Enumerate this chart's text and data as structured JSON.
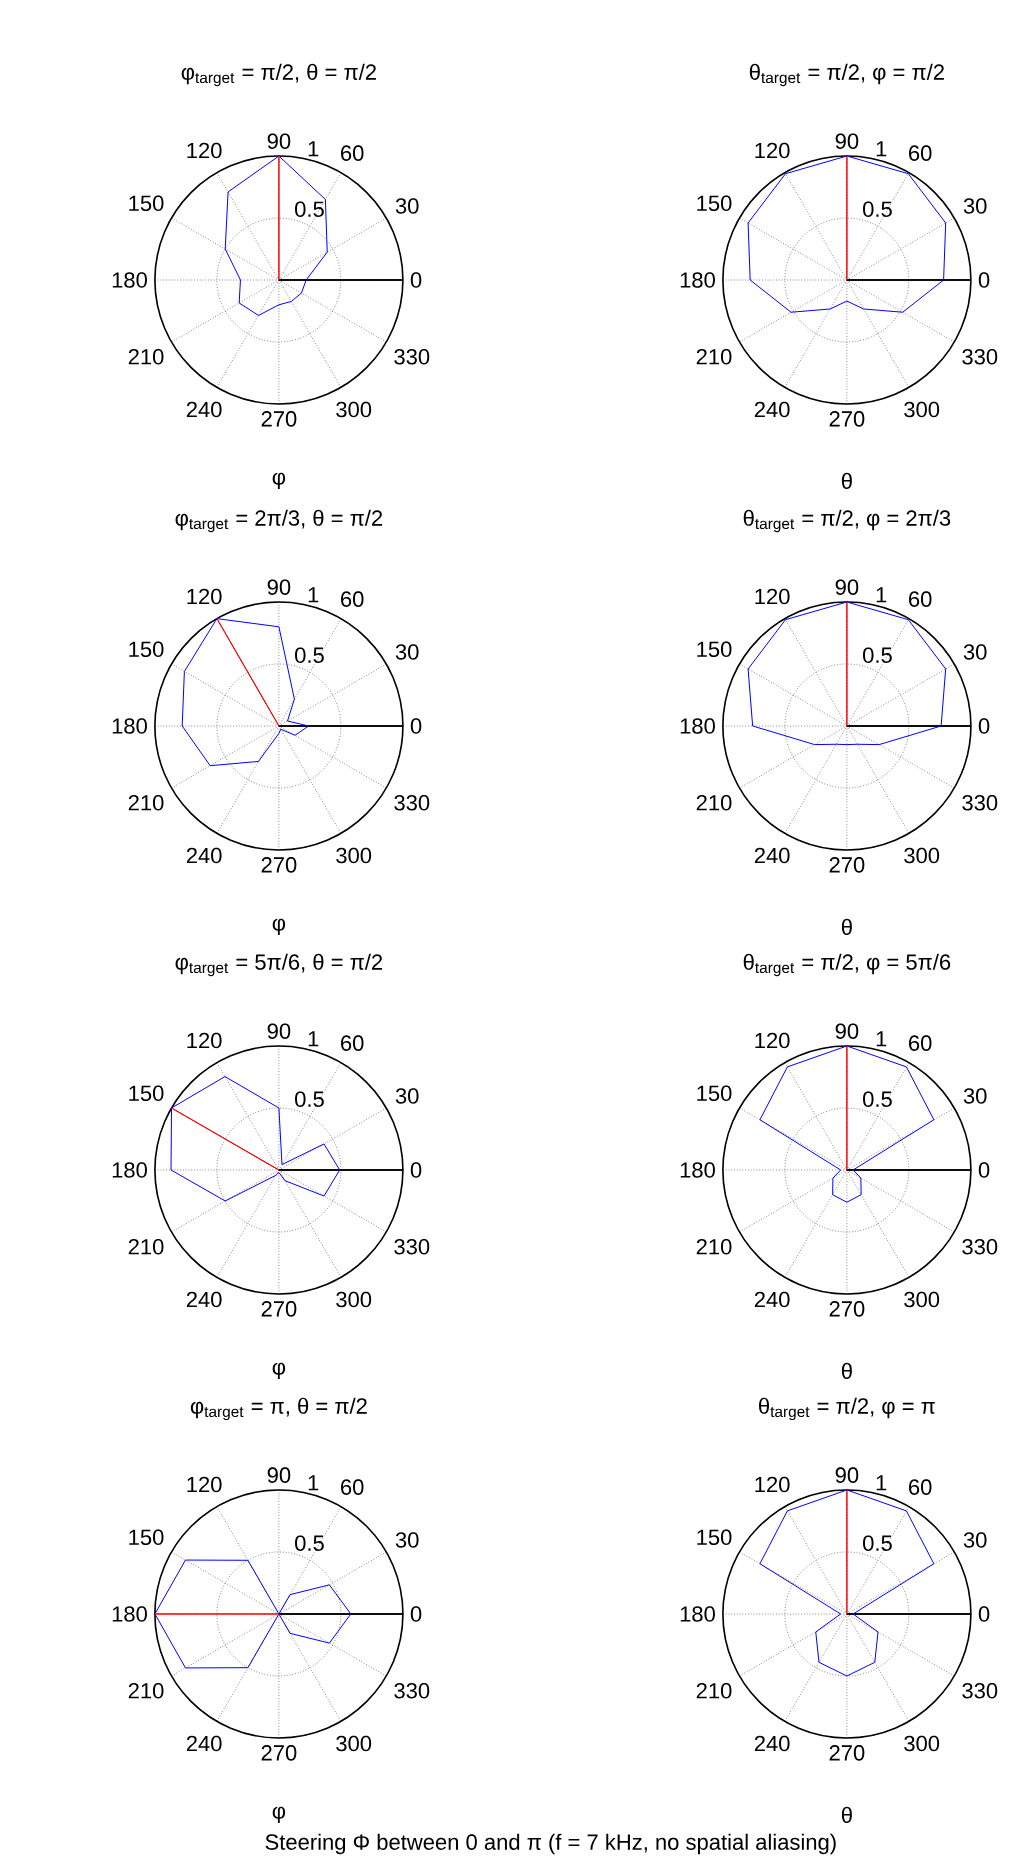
{
  "chart_data": [
    {
      "type": "radar",
      "title": "φ$_{target}$ = π/2, θ = π/2",
      "xlabel": "φ",
      "categories": [
        "90",
        "60",
        "30",
        "0",
        "330",
        "300",
        "270",
        "240",
        "210",
        "180",
        "150",
        "120"
      ],
      "ylim": [
        0,
        1
      ],
      "yticks": [
        0.5,
        1
      ],
      "grid": true,
      "series": [
        {
          "color": "#0000ff",
          "values": [
            1.0,
            0.75,
            0.45,
            0.22,
            0.21,
            0.2,
            0.2,
            0.33,
            0.37,
            0.31,
            0.5,
            0.82
          ]
        },
        {
          "color": "#ff0000",
          "values": [
            1,
            0,
            0,
            0,
            0,
            0,
            0,
            0,
            0,
            0,
            0,
            0
          ]
        }
      ]
    },
    {
      "type": "radar",
      "title": "θ$_{target}$ = π/2, φ = π/2",
      "xlabel": "θ",
      "categories": [
        "90",
        "60",
        "30",
        "0",
        "330",
        "300",
        "270",
        "240",
        "210",
        "180",
        "150",
        "120"
      ],
      "ylim": [
        0,
        1
      ],
      "yticks": [
        0.5,
        1
      ],
      "grid": true,
      "series": [
        {
          "color": "#0000ff",
          "values": [
            1.0,
            0.99,
            0.92,
            0.78,
            0.52,
            0.27,
            0.17,
            0.27,
            0.52,
            0.78,
            0.92,
            0.99
          ]
        },
        {
          "color": "#ff0000",
          "values": [
            1,
            0,
            0,
            0,
            0,
            0,
            0,
            0,
            0,
            0,
            0,
            0
          ]
        }
      ]
    },
    {
      "type": "radar",
      "title": "φ$_{target}$ = 2π/3, θ = π/2",
      "xlabel": "φ",
      "categories": [
        "90",
        "60",
        "30",
        "0",
        "330",
        "300",
        "270",
        "240",
        "210",
        "180",
        "150",
        "120"
      ],
      "ylim": [
        0,
        1
      ],
      "yticks": [
        0.5,
        1
      ],
      "grid": true,
      "series": [
        {
          "color": "#0000ff",
          "values": [
            0.8,
            0.25,
            0.08,
            0.24,
            0.15,
            0.03,
            0.06,
            0.33,
            0.64,
            0.78,
            0.88,
            1.0
          ]
        },
        {
          "color": "#ff0000",
          "values": [
            0,
            0,
            0,
            0,
            0,
            0,
            0,
            0,
            0,
            0,
            0,
            1
          ]
        }
      ]
    },
    {
      "type": "radar",
      "title": "θ$_{target}$ = π/2, φ = 2π/3",
      "xlabel": "θ",
      "categories": [
        "90",
        "60",
        "30",
        "0",
        "330",
        "300",
        "270",
        "240",
        "210",
        "180",
        "150",
        "120"
      ],
      "ylim": [
        0,
        1
      ],
      "yticks": [
        0.5,
        1
      ],
      "grid": true,
      "series": [
        {
          "color": "#0000ff",
          "values": [
            1.0,
            0.99,
            0.92,
            0.76,
            0.3,
            0.17,
            0.15,
            0.17,
            0.3,
            0.76,
            0.92,
            0.99
          ]
        },
        {
          "color": "#ff0000",
          "values": [
            1,
            0,
            0,
            0,
            0,
            0,
            0,
            0,
            0,
            0,
            0,
            0
          ]
        }
      ]
    },
    {
      "type": "radar",
      "title": "φ$_{target}$ = 5π/6, θ = π/2",
      "xlabel": "φ",
      "categories": [
        "90",
        "60",
        "30",
        "0",
        "330",
        "300",
        "270",
        "240",
        "210",
        "180",
        "150",
        "120"
      ],
      "ylim": [
        0,
        1
      ],
      "yticks": [
        0.5,
        1
      ],
      "grid": true,
      "series": [
        {
          "color": "#0000ff",
          "values": [
            0.5,
            0.05,
            0.42,
            0.49,
            0.42,
            0.1,
            0.02,
            0.05,
            0.5,
            0.87,
            1.0,
            0.87
          ]
        },
        {
          "color": "#ff0000",
          "values": [
            0,
            0,
            0,
            0,
            0,
            0,
            0,
            0,
            0,
            0,
            1,
            0
          ]
        }
      ]
    },
    {
      "type": "radar",
      "title": "θ$_{target}$ = π/2, φ = 5π/6",
      "xlabel": "θ",
      "categories": [
        "90",
        "60",
        "30",
        "0",
        "330",
        "300",
        "270",
        "240",
        "210",
        "180",
        "150",
        "120"
      ],
      "ylim": [
        0,
        1
      ],
      "yticks": [
        0.5,
        1
      ],
      "grid": true,
      "series": [
        {
          "color": "#0000ff",
          "values": [
            1.0,
            0.96,
            0.81,
            0.05,
            0.13,
            0.23,
            0.26,
            0.23,
            0.13,
            0.05,
            0.81,
            0.96
          ]
        },
        {
          "color": "#ff0000",
          "values": [
            1,
            0,
            0,
            0,
            0,
            0,
            0,
            0,
            0,
            0,
            0,
            0
          ]
        }
      ]
    },
    {
      "type": "radar",
      "title": "φ$_{target}$ = π, θ = π/2",
      "xlabel": "φ",
      "categories": [
        "90",
        "60",
        "30",
        "0",
        "330",
        "300",
        "270",
        "240",
        "210",
        "180",
        "150",
        "120"
      ],
      "ylim": [
        0,
        1
      ],
      "yticks": [
        0.5,
        1
      ],
      "grid": true,
      "series": [
        {
          "color": "#0000ff",
          "values": [
            0.0,
            0.18,
            0.47,
            0.58,
            0.47,
            0.18,
            0.0,
            0.5,
            0.87,
            1.0,
            0.87,
            0.5
          ]
        },
        {
          "color": "#ff0000",
          "values": [
            0,
            0,
            0,
            0,
            0,
            0,
            0,
            0,
            0,
            1,
            0,
            0
          ]
        }
      ]
    },
    {
      "type": "radar",
      "title": "θ$_{target}$ = π/2, φ = π",
      "xlabel": "θ",
      "categories": [
        "90",
        "60",
        "30",
        "0",
        "330",
        "300",
        "270",
        "240",
        "210",
        "180",
        "150",
        "120"
      ],
      "ylim": [
        0,
        1
      ],
      "yticks": [
        0.5,
        1
      ],
      "grid": true,
      "series": [
        {
          "color": "#0000ff",
          "values": [
            1.0,
            0.96,
            0.81,
            0.05,
            0.29,
            0.45,
            0.5,
            0.45,
            0.29,
            0.05,
            0.81,
            0.96
          ]
        },
        {
          "color": "#ff0000",
          "values": [
            1,
            0,
            0,
            0,
            0,
            0,
            0,
            0,
            0,
            0,
            0,
            0
          ]
        }
      ],
      "annotations": [
        "Steering Φ between 0 and π (f = 7 kHz, no spatial aliasing)"
      ]
    }
  ]
}
